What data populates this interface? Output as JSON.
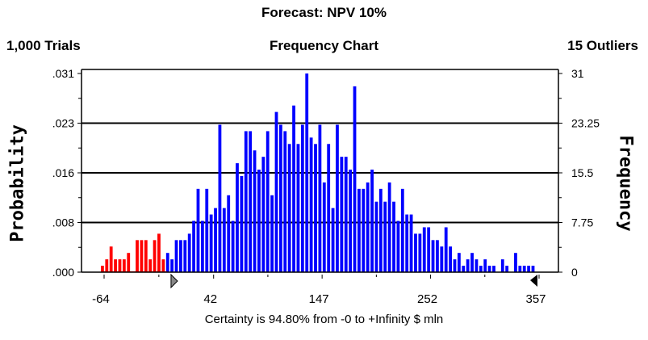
{
  "header": {
    "title": "Forecast: NPV 10%",
    "trials": "1,000 Trials",
    "chart_name": "Frequency Chart",
    "outliers": "15 Outliers"
  },
  "certainty_text": "Certainty is 94.80% from -0 to +Infinity $ mln",
  "colors": {
    "in_range": "#0000ff",
    "out_of_range": "#ff0000",
    "grid": "#000000"
  },
  "chart_data": {
    "type": "bar",
    "title": "Forecast: NPV 10%",
    "subtitle": "Frequency Chart",
    "xlabel": "$ mln",
    "ylabel_left": "Probability",
    "ylabel_right": "Frequency",
    "xlim": [
      -64,
      357
    ],
    "bin_count": 100,
    "x_ticks": [
      "-64",
      "42",
      "147",
      "252",
      "357"
    ],
    "x_tick_values": [
      -64,
      42,
      147,
      252,
      357
    ],
    "y_left_ticks": [
      ".000",
      ".008",
      ".016",
      ".023",
      ".031"
    ],
    "y_right_ticks": [
      "0",
      "7.75",
      "15.5",
      "23.25",
      "31"
    ],
    "y_right_tick_values": [
      0,
      7.75,
      15.5,
      23.25,
      31
    ],
    "ylim_frequency": [
      0,
      31
    ],
    "grid": "horizontal",
    "certainty_lower": 0,
    "red_bins_before_index": 15,
    "frequencies": [
      1,
      2,
      4,
      2,
      2,
      2,
      3,
      0,
      5,
      5,
      5,
      2,
      5,
      6,
      2,
      3,
      2,
      5,
      5,
      5,
      6,
      8,
      13,
      8,
      13,
      9,
      10,
      23,
      10,
      12,
      8,
      17,
      15,
      22,
      22,
      19,
      16,
      18,
      22,
      12,
      25,
      23,
      22,
      20,
      26,
      20,
      23,
      31,
      21,
      20,
      23,
      14,
      20,
      10,
      23,
      18,
      18,
      16,
      29,
      13,
      13,
      14,
      16,
      11,
      13,
      11,
      14,
      11,
      8,
      13,
      9,
      9,
      6,
      6,
      7,
      7,
      5,
      5,
      4,
      7,
      4,
      2,
      3,
      1,
      2,
      3,
      2,
      1,
      2,
      1,
      1,
      0,
      2,
      1,
      0,
      3,
      1,
      1,
      1,
      1
    ]
  }
}
